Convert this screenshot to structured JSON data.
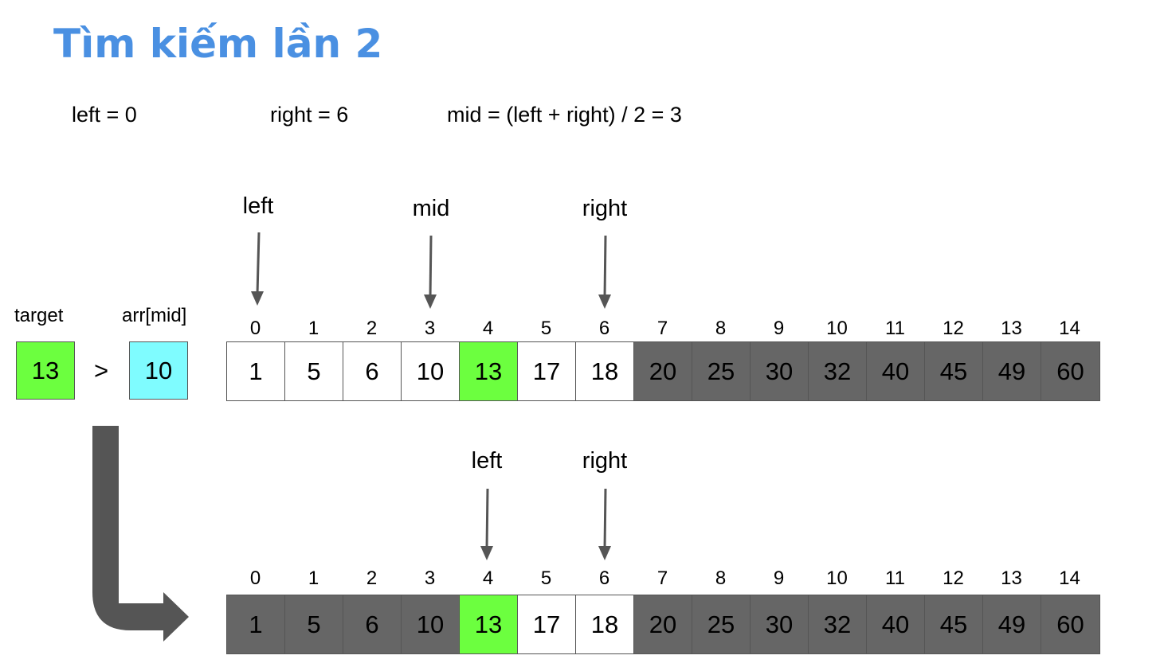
{
  "title": "Tìm kiếm lần 2",
  "formulas": {
    "left": "left = 0",
    "right": "right = 6",
    "mid": "mid = (left + right) / 2 = 3"
  },
  "comparison": {
    "target_label": "target",
    "target_value": "13",
    "operator": ">",
    "arr_mid_label": "arr[mid]",
    "arr_mid_value": "10",
    "target_color": "#6cff3f",
    "arr_mid_color": "#7ffcff"
  },
  "colors": {
    "title": "#4a90e2",
    "active_cell": "#ffffff",
    "excluded_cell": "#666666",
    "found_cell": "#6cff3f",
    "arrow": "#555555"
  },
  "indices": [
    "0",
    "1",
    "2",
    "3",
    "4",
    "5",
    "6",
    "7",
    "8",
    "9",
    "10",
    "11",
    "12",
    "13",
    "14"
  ],
  "values": [
    "1",
    "5",
    "6",
    "10",
    "13",
    "17",
    "18",
    "20",
    "25",
    "30",
    "32",
    "40",
    "45",
    "49",
    "60"
  ],
  "array_top": {
    "states": [
      "white",
      "white",
      "white",
      "white",
      "green",
      "white",
      "white",
      "gray",
      "gray",
      "gray",
      "gray",
      "gray",
      "gray",
      "gray",
      "gray"
    ],
    "pointers": [
      {
        "label": "left",
        "index": 0
      },
      {
        "label": "mid",
        "index": 3
      },
      {
        "label": "right",
        "index": 6
      }
    ]
  },
  "array_bottom": {
    "states": [
      "gray",
      "gray",
      "gray",
      "gray",
      "green",
      "white",
      "white",
      "gray",
      "gray",
      "gray",
      "gray",
      "gray",
      "gray",
      "gray",
      "gray"
    ],
    "pointers": [
      {
        "label": "left",
        "index": 4
      },
      {
        "label": "right",
        "index": 6
      }
    ]
  }
}
